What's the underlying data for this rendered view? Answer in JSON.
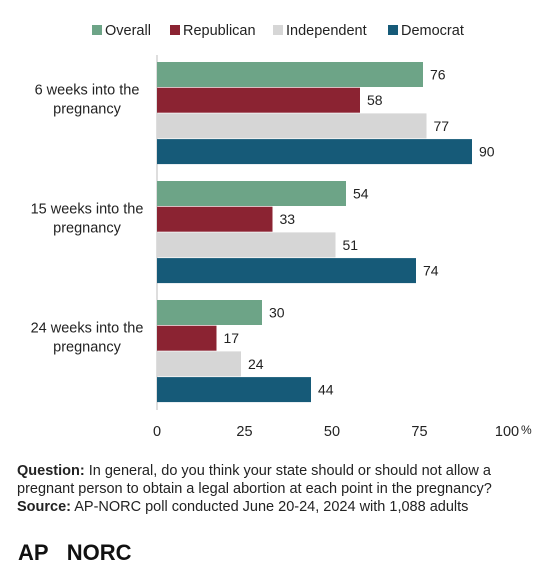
{
  "chart_data": {
    "type": "bar",
    "orientation": "horizontal",
    "categories": [
      [
        "6 weeks into the",
        "pregnancy"
      ],
      [
        "15 weeks into the",
        "pregnancy"
      ],
      [
        "24 weeks into the",
        "pregnancy"
      ]
    ],
    "series": [
      {
        "name": "Overall",
        "color": "#6da487",
        "values": [
          76,
          54,
          30
        ]
      },
      {
        "name": "Republican",
        "color": "#8b2332",
        "values": [
          58,
          33,
          17
        ]
      },
      {
        "name": "Independent",
        "color": "#d6d6d6",
        "values": [
          77,
          51,
          24
        ]
      },
      {
        "name": "Democrat",
        "color": "#165a78",
        "values": [
          90,
          74,
          44
        ]
      }
    ],
    "xlim": [
      0,
      100
    ],
    "xticks": [
      "0",
      "25",
      "50",
      "75",
      "100"
    ],
    "x_unit": "%",
    "legend": "top",
    "grid": false
  },
  "footer": {
    "question_label": "Question:",
    "question_text": " In general, do you think your state should or should not allow a pregnant person to obtain a legal abortion at each point in the pregnancy?",
    "source_label": "Source:",
    "source_text": "  AP-NORC poll conducted June 20-24, 2024 with 1,088 adults",
    "logo_ap": "AP",
    "logo_norc": "NORC"
  }
}
